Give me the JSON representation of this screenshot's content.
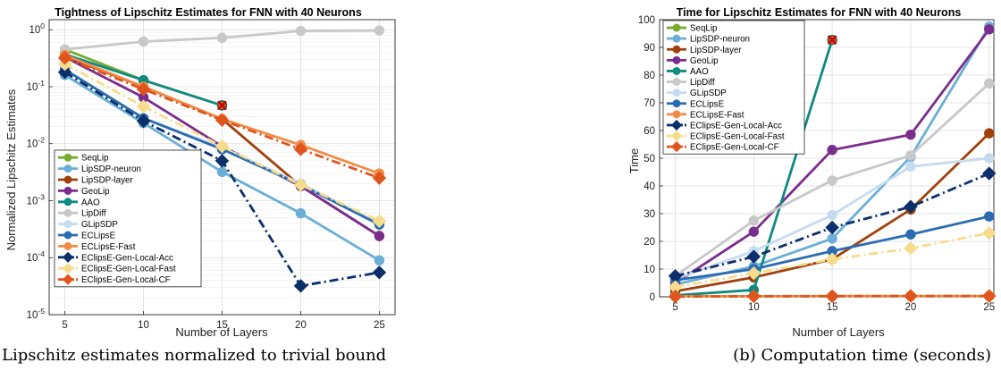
{
  "captions": {
    "left": "Lipschitz estimates normalized to trivial bound",
    "right": "(b) Computation time (seconds)"
  },
  "series_styles": [
    {
      "name": "SeqLip",
      "color": "#77AC30",
      "dash": "solid",
      "marker": "circle"
    },
    {
      "name": "LipSDP-neuron",
      "color": "#6BAED6",
      "dash": "solid",
      "marker": "circle"
    },
    {
      "name": "LipSDP-layer",
      "color": "#A0410D",
      "dash": "solid",
      "marker": "circle"
    },
    {
      "name": "GeoLip",
      "color": "#7B2D8E",
      "dash": "solid",
      "marker": "circle"
    },
    {
      "name": "AAO",
      "color": "#0F8A80",
      "dash": "solid",
      "marker": "circle"
    },
    {
      "name": "LipDiff",
      "color": "#C8C8C8",
      "dash": "solid",
      "marker": "circle"
    },
    {
      "name": "GLipSDP",
      "color": "#C6DBEF",
      "dash": "solid",
      "marker": "circle"
    },
    {
      "name": "ECLipsE",
      "color": "#2B6CB0",
      "dash": "solid",
      "marker": "circle"
    },
    {
      "name": "ECLipsE-Fast",
      "color": "#F08C46",
      "dash": "solid",
      "marker": "circle"
    },
    {
      "name": "EClipsE-Gen-Local-Acc",
      "color": "#0B2F6B",
      "dash": "dashdot",
      "marker": "diamond"
    },
    {
      "name": "EClipsE-Gen-Local-Fast",
      "color": "#F6DC8C",
      "dash": "dashdot",
      "marker": "diamond"
    },
    {
      "name": "EClipsE-Gen-Local-CF",
      "color": "#E0541E",
      "dash": "dashdot",
      "marker": "diamond"
    }
  ],
  "chart_data": [
    {
      "type": "line",
      "title": "Tightness of Lipschitz Estimates for FNN with 40 Neurons",
      "xlabel": "Number of Layers",
      "ylabel": "Normalized Lipschitz Estimates",
      "yscale": "log",
      "xlim": [
        4,
        26
      ],
      "ylim": [
        1e-05,
        1.5
      ],
      "xticks": [
        5,
        10,
        15,
        20,
        25
      ],
      "yticks": [
        1e-05,
        0.0001,
        0.001,
        0.01,
        0.1,
        1
      ],
      "ytick_labels": [
        [
          "10",
          "-5"
        ],
        [
          "10",
          "-4"
        ],
        [
          "10",
          "-3"
        ],
        [
          "10",
          "-2"
        ],
        [
          "10",
          "-1"
        ],
        [
          "10",
          "0"
        ]
      ],
      "grid": true,
      "minor_grid": true,
      "legend": "lower-left",
      "failure_markers": [
        {
          "x": 15,
          "y": 0.047
        }
      ],
      "series": [
        {
          "name": "SeqLip",
          "x": [
            5,
            10,
            15
          ],
          "values": [
            0.45,
            0.13,
            0.047
          ]
        },
        {
          "name": "LipSDP-neuron",
          "x": [
            5,
            10,
            15,
            20,
            25
          ],
          "values": [
            0.16,
            0.023,
            0.0032,
            0.0006,
            9e-05
          ]
        },
        {
          "name": "LipSDP-layer",
          "x": [
            5,
            10,
            15,
            20,
            25
          ],
          "values": [
            0.34,
            0.1,
            0.027,
            0.0018,
            0.00024
          ]
        },
        {
          "name": "GeoLip",
          "x": [
            5,
            10,
            15,
            20,
            25
          ],
          "values": [
            0.33,
            0.065,
            0.009,
            0.0018,
            0.00024
          ]
        },
        {
          "name": "AAO",
          "x": [
            5,
            10,
            15
          ],
          "values": [
            0.37,
            0.13,
            0.047
          ]
        },
        {
          "name": "LipDiff",
          "x": [
            5,
            10,
            15,
            20,
            25
          ],
          "values": [
            0.45,
            0.62,
            0.72,
            0.95,
            0.97
          ]
        },
        {
          "name": "GLipSDP",
          "x": [
            5,
            10,
            15,
            20,
            25
          ],
          "values": [
            0.2,
            0.028,
            0.0085,
            0.002,
            0.0004
          ]
        },
        {
          "name": "ECLipsE",
          "x": [
            5,
            10,
            15,
            20,
            25
          ],
          "values": [
            0.2,
            0.028,
            0.008,
            0.0019,
            0.00038
          ]
        },
        {
          "name": "ECLipsE-Fast",
          "x": [
            5,
            10,
            15,
            20,
            25
          ],
          "values": [
            0.36,
            0.1,
            0.027,
            0.0095,
            0.003
          ]
        },
        {
          "name": "EClipsE-Gen-Local-Acc",
          "x": [
            5,
            10,
            15,
            20,
            25
          ],
          "values": [
            0.18,
            0.025,
            0.005,
            3.2e-05,
            5.5e-05
          ]
        },
        {
          "name": "EClipsE-Gen-Local-Fast",
          "x": [
            5,
            10,
            15,
            20,
            25
          ],
          "values": [
            0.25,
            0.045,
            0.009,
            0.0019,
            0.00044
          ]
        },
        {
          "name": "EClipsE-Gen-Local-CF",
          "x": [
            5,
            10,
            15,
            20,
            25
          ],
          "values": [
            0.32,
            0.09,
            0.026,
            0.008,
            0.0025
          ]
        }
      ]
    },
    {
      "type": "line",
      "title": "Time for Lipschitz Estimates for FNN with 40 Neurons",
      "xlabel": "Number of Layers",
      "ylabel": "Time",
      "yscale": "linear",
      "xlim": [
        4,
        25.3
      ],
      "ylim": [
        0,
        100
      ],
      "xticks": [
        5,
        10,
        15,
        20,
        25
      ],
      "yticks": [
        0,
        10,
        20,
        30,
        40,
        50,
        60,
        70,
        80,
        90,
        100
      ],
      "grid": true,
      "legend": "upper-left",
      "failure_markers": [
        {
          "x": 15,
          "y": 92.7
        }
      ],
      "series": [
        {
          "name": "SeqLip",
          "x": [
            5,
            10,
            15,
            20,
            25
          ],
          "values": [
            0.2,
            0.2,
            0.2,
            0.2,
            0.2
          ]
        },
        {
          "name": "LipSDP-neuron",
          "x": [
            5,
            10,
            15,
            20,
            25
          ],
          "values": [
            4.5,
            11,
            21,
            50.5,
            97.5
          ]
        },
        {
          "name": "LipSDP-layer",
          "x": [
            5,
            10,
            15,
            20,
            25
          ],
          "values": [
            2,
            7,
            13.5,
            31.5,
            59
          ]
        },
        {
          "name": "GeoLip",
          "x": [
            5,
            10,
            15,
            20,
            25
          ],
          "values": [
            5,
            23.5,
            53,
            58.5,
            96.5
          ]
        },
        {
          "name": "AAO",
          "x": [
            5,
            10,
            15
          ],
          "values": [
            0.5,
            2.5,
            92.7
          ]
        },
        {
          "name": "LipDiff",
          "x": [
            5,
            10,
            15,
            20,
            25
          ],
          "values": [
            7.5,
            27.5,
            42,
            51,
            77
          ]
        },
        {
          "name": "GLipSDP",
          "x": [
            5,
            10,
            15,
            20,
            25
          ],
          "values": [
            6.5,
            16.5,
            29.5,
            47,
            50
          ]
        },
        {
          "name": "ECLipsE",
          "x": [
            5,
            10,
            15,
            20,
            25
          ],
          "values": [
            6,
            10,
            16.5,
            22.5,
            29
          ]
        },
        {
          "name": "ECLipsE-Fast",
          "x": [
            5,
            10,
            15,
            20,
            25
          ],
          "values": [
            0.2,
            0.2,
            0.3,
            0.3,
            0.3
          ]
        },
        {
          "name": "EClipsE-Gen-Local-Acc",
          "x": [
            5,
            10,
            15,
            20,
            25
          ],
          "values": [
            7.5,
            14.5,
            25,
            32.5,
            44.5
          ]
        },
        {
          "name": "EClipsE-Gen-Local-Fast",
          "x": [
            5,
            10,
            15,
            20,
            25
          ],
          "values": [
            3.5,
            8.5,
            13.5,
            17.5,
            23
          ]
        },
        {
          "name": "EClipsE-Gen-Local-CF",
          "x": [
            5,
            10,
            15,
            20,
            25
          ],
          "values": [
            0.1,
            0.2,
            0.2,
            0.3,
            0.3
          ]
        }
      ]
    }
  ]
}
